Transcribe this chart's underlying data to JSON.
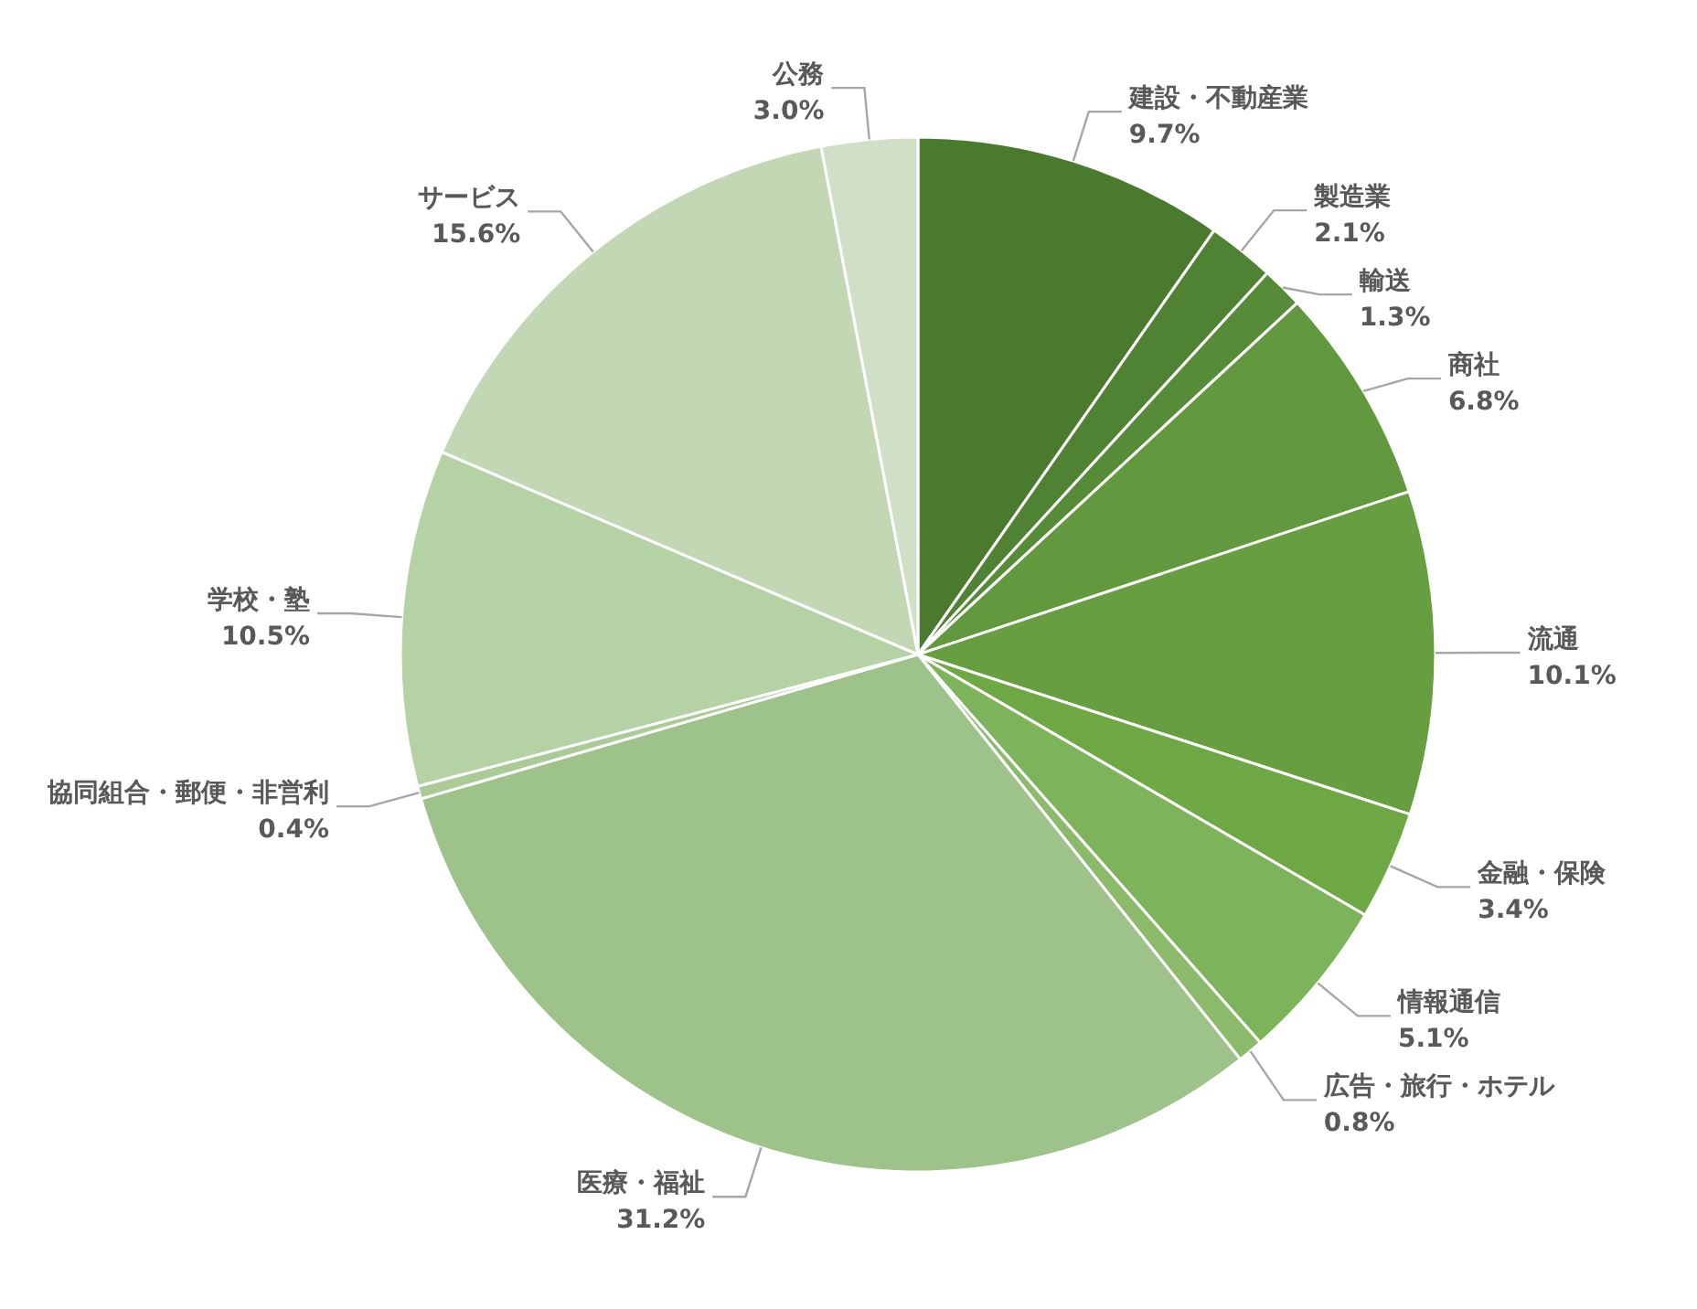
{
  "chart_data": {
    "type": "pie",
    "categories": [
      "建設・不動産業",
      "製造業",
      "輸送",
      "商社",
      "流通",
      "金融・保険",
      "情報通信",
      "広告・旅行・ホテル",
      "医療・福祉",
      "協同組合・郵便・非営利",
      "学校・塾",
      "サービス",
      "公務"
    ],
    "values": [
      9.7,
      2.1,
      1.3,
      6.8,
      10.1,
      3.4,
      5.1,
      0.8,
      31.2,
      0.4,
      10.5,
      15.6,
      3.0
    ],
    "value_labels": [
      "9.7%",
      "2.1%",
      "1.3%",
      "6.8%",
      "10.1%",
      "3.4%",
      "5.1%",
      "0.8%",
      "31.2%",
      "0.4%",
      "10.5%",
      "15.6%",
      "3.0%"
    ],
    "colors": [
      "#4a7a2e",
      "#4f8233",
      "#568c38",
      "#62993f",
      "#669e40",
      "#6ea845",
      "#7db35a",
      "#8aba6a",
      "#9ec38a",
      "#aacb96",
      "#b5d2a5",
      "#c2d8b5",
      "#d0e0c6"
    ],
    "legend": false
  }
}
